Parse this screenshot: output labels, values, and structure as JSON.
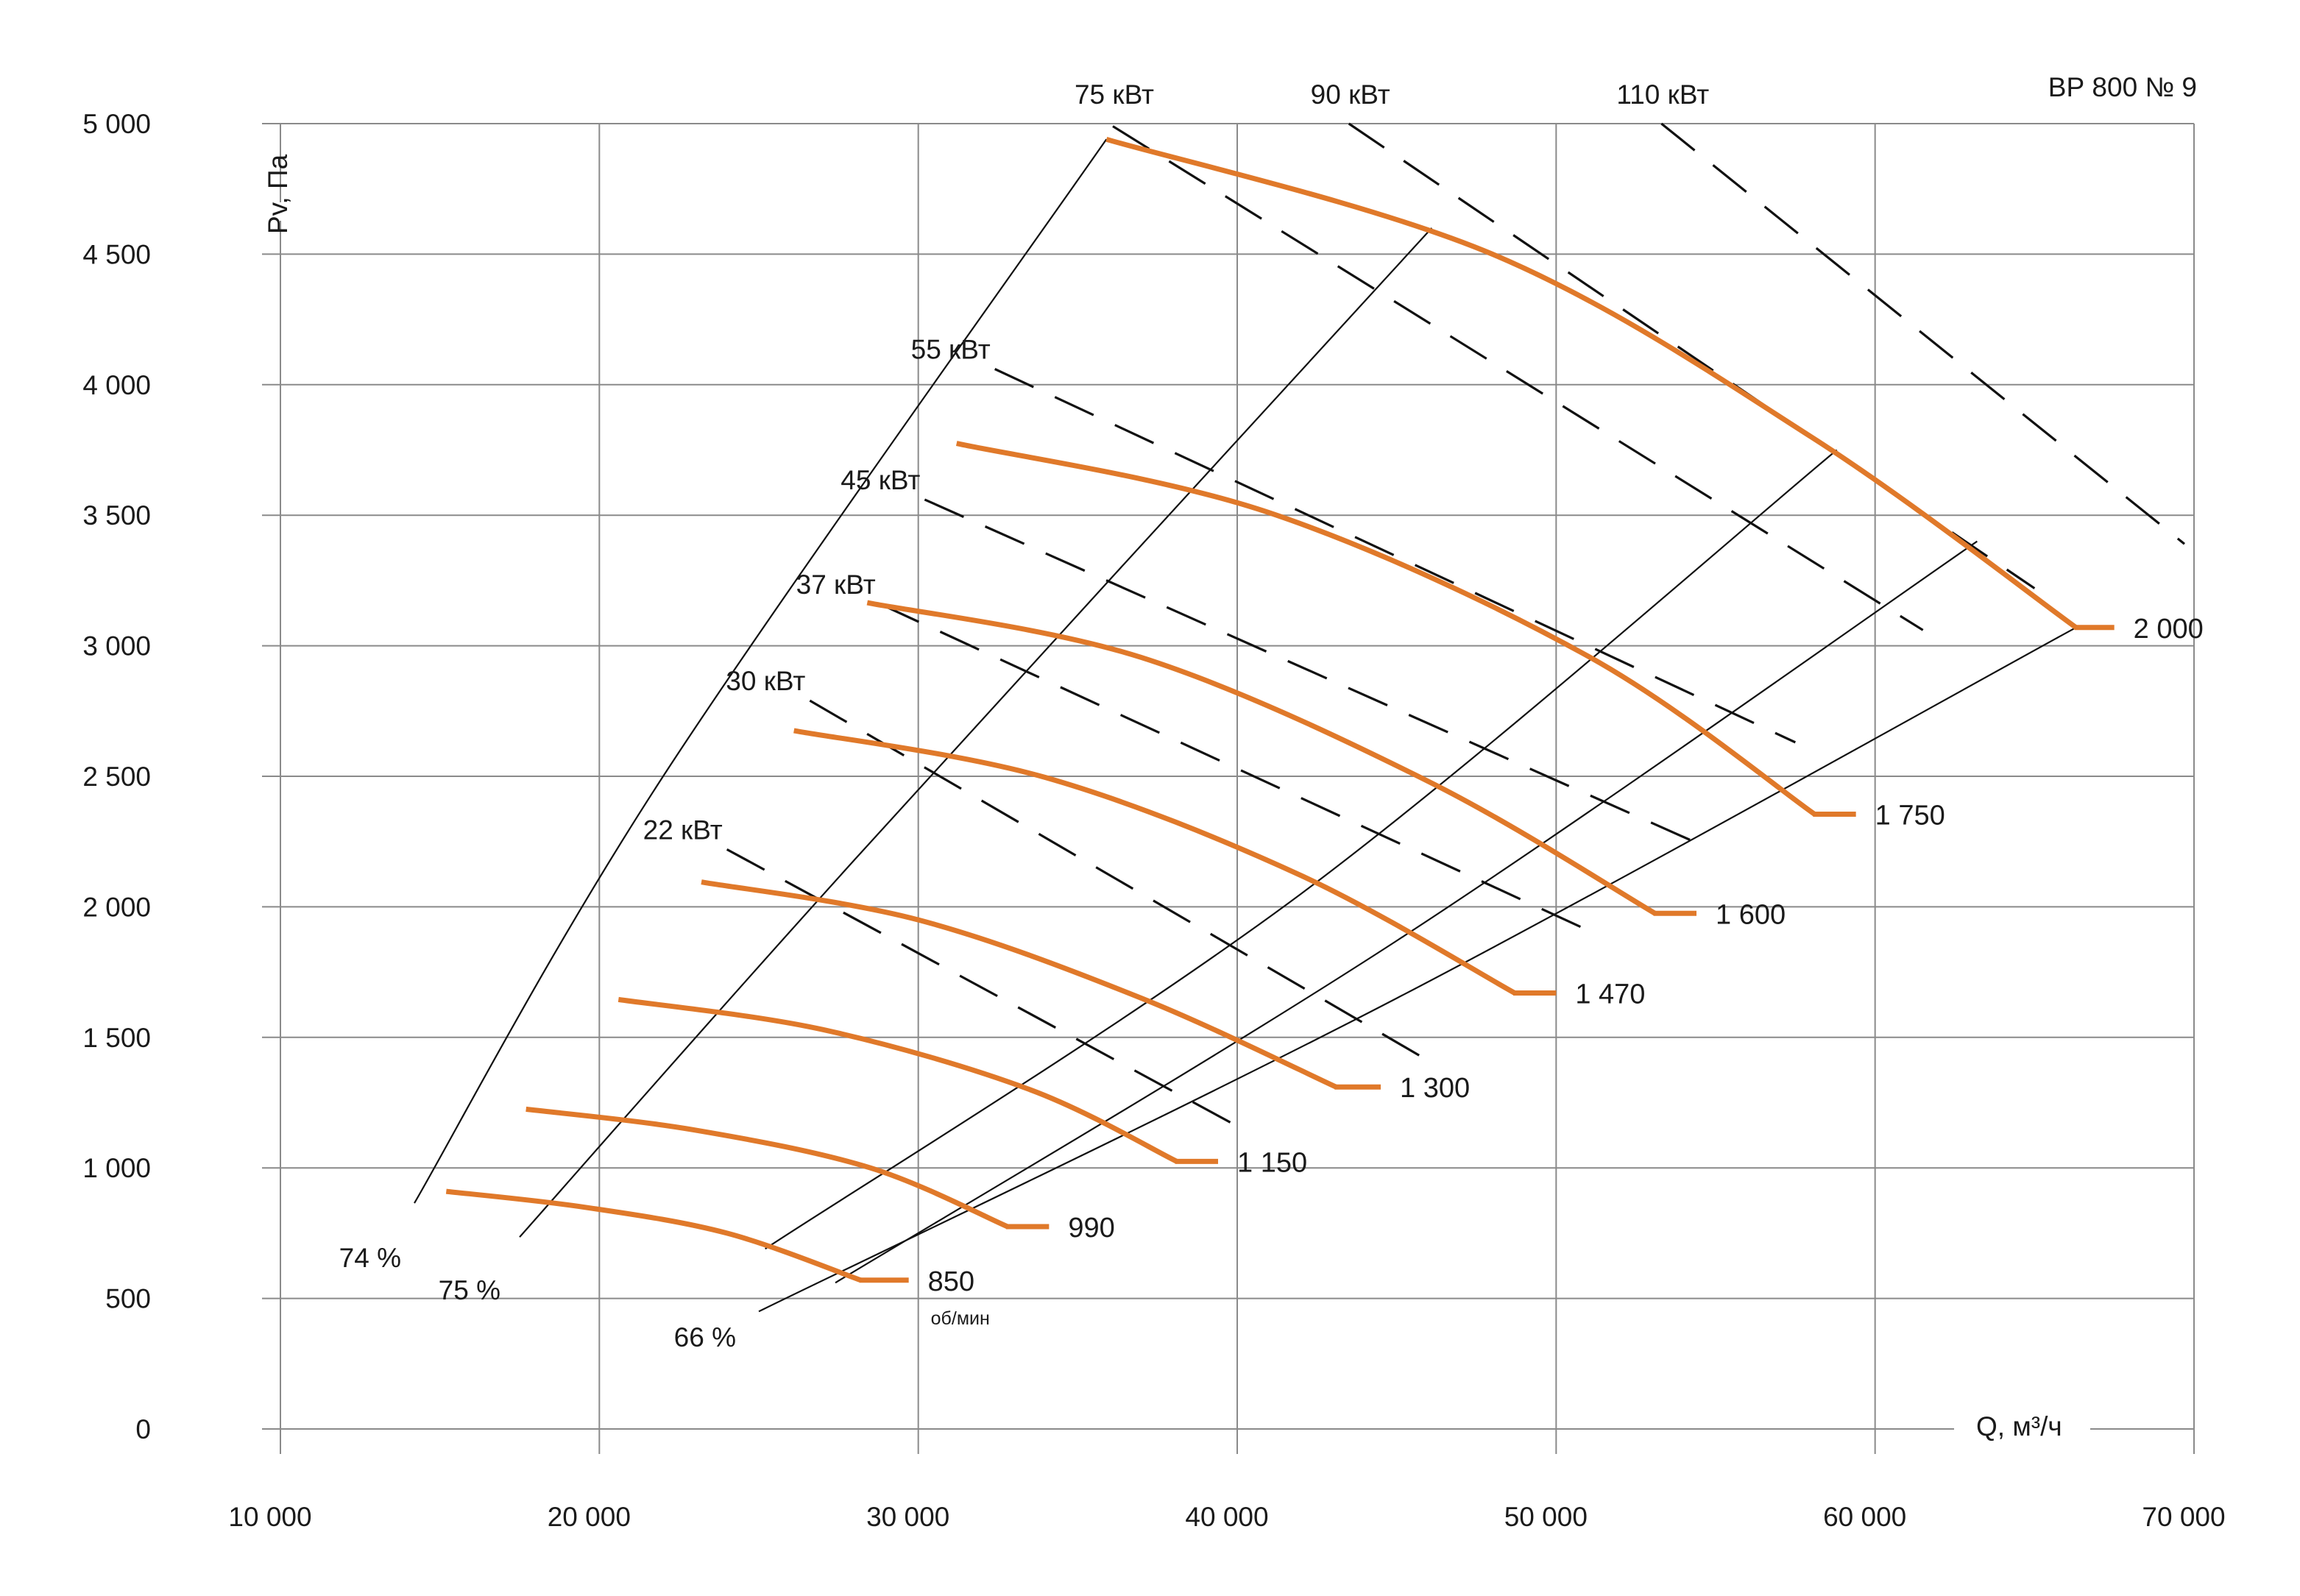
{
  "chart_data": {
    "type": "line",
    "title": "ВР 800  № 9",
    "xlabel": "Q, м³/ч",
    "ylabel": "Pv, Па",
    "xlim": [
      10000,
      70000
    ],
    "ylim": [
      0,
      5000
    ],
    "grid": true,
    "x_ticks": [
      10000,
      20000,
      30000,
      40000,
      50000,
      60000,
      70000
    ],
    "x_tick_labels": [
      "10 000",
      "20 000",
      "30 000",
      "40 000",
      "50 000",
      "60 000",
      "70 000"
    ],
    "y_ticks": [
      0,
      500,
      1000,
      1500,
      2000,
      2500,
      3000,
      3500,
      4000,
      4500,
      5000
    ],
    "y_tick_labels": [
      "0",
      "500",
      "1 000",
      "1 500",
      "2 000",
      "2 500",
      "3 000",
      "3 500",
      "4 000",
      "4 500",
      "5 000"
    ],
    "speed_unit": "об/мин",
    "speed_curves": [
      {
        "label": "850",
        "points": [
          [
            15200,
            910
          ],
          [
            19500,
            850
          ],
          [
            24000,
            750
          ],
          [
            28200,
            570
          ]
        ],
        "tail_to": 29700
      },
      {
        "label": "990",
        "points": [
          [
            17700,
            1225
          ],
          [
            23000,
            1145
          ],
          [
            28500,
            1000
          ],
          [
            32800,
            775
          ]
        ],
        "tail_to": 34100
      },
      {
        "label": "1 150",
        "points": [
          [
            20600,
            1645
          ],
          [
            27000,
            1530
          ],
          [
            33500,
            1300
          ],
          [
            38100,
            1025
          ]
        ],
        "tail_to": 39400
      },
      {
        "label": "1 300",
        "points": [
          [
            23200,
            2095
          ],
          [
            30000,
            1950
          ],
          [
            37000,
            1650
          ],
          [
            43100,
            1310
          ]
        ],
        "tail_to": 44500
      },
      {
        "label": "1 470",
        "points": [
          [
            26100,
            2675
          ],
          [
            34000,
            2495
          ],
          [
            42000,
            2120
          ],
          [
            48700,
            1670
          ]
        ],
        "tail_to": 50000
      },
      {
        "label": "1 600",
        "points": [
          [
            28400,
            3165
          ],
          [
            37000,
            2955
          ],
          [
            46000,
            2480
          ],
          [
            53100,
            1975
          ]
        ],
        "tail_to": 54400
      },
      {
        "label": "1 750",
        "points": [
          [
            31200,
            3775
          ],
          [
            41000,
            3510
          ],
          [
            51000,
            2960
          ],
          [
            58100,
            2355
          ]
        ],
        "tail_to": 59400
      },
      {
        "label": "2 000",
        "points": [
          [
            35900,
            4940
          ],
          [
            48000,
            4500
          ],
          [
            58000,
            3800
          ],
          [
            66300,
            3070
          ]
        ],
        "tail_to": 67500
      }
    ],
    "power_lines": [
      {
        "label": "22 кВт",
        "from": [
          24000,
          2220
        ],
        "to": [
          40000,
          1160
        ]
      },
      {
        "label": "30 кВт",
        "from": [
          26600,
          2790
        ],
        "to": [
          46000,
          1410
        ]
      },
      {
        "label": "37 кВт",
        "from": [
          28800,
          3160
        ],
        "to": [
          51000,
          1910
        ]
      },
      {
        "label": "45 кВт",
        "from": [
          30200,
          3560
        ],
        "to": [
          54500,
          2240
        ]
      },
      {
        "label": "55 кВт",
        "from": [
          32400,
          4060
        ],
        "to": [
          57500,
          2630
        ]
      },
      {
        "label": "75 кВт",
        "from": [
          36100,
          4990
        ],
        "to": [
          61500,
          3060
        ]
      },
      {
        "label": "90 кВт",
        "from": [
          43500,
          5000
        ],
        "to": [
          65000,
          3220
        ]
      },
      {
        "label": "110 кВт",
        "from": [
          53300,
          5000
        ],
        "to": [
          69700,
          3390
        ]
      }
    ],
    "efficiency_lines": [
      {
        "label": "74 %",
        "points": [
          [
            14200,
            865
          ],
          [
            22000,
            2500
          ],
          [
            35900,
            4940
          ]
        ]
      },
      {
        "label": "75 %",
        "points": [
          [
            17500,
            735
          ],
          [
            28000,
            2180
          ],
          [
            46100,
            4600
          ]
        ]
      },
      {
        "label": "",
        "points": [
          [
            25200,
            690
          ],
          [
            42000,
            2050
          ],
          [
            58800,
            3750
          ]
        ]
      },
      {
        "label": "",
        "points": [
          [
            27400,
            560
          ],
          [
            45000,
            1870
          ],
          [
            63200,
            3400
          ]
        ]
      },
      {
        "label": "66 %",
        "points": [
          [
            25000,
            450
          ],
          [
            45000,
            1650
          ],
          [
            66300,
            3070
          ]
        ]
      }
    ]
  }
}
